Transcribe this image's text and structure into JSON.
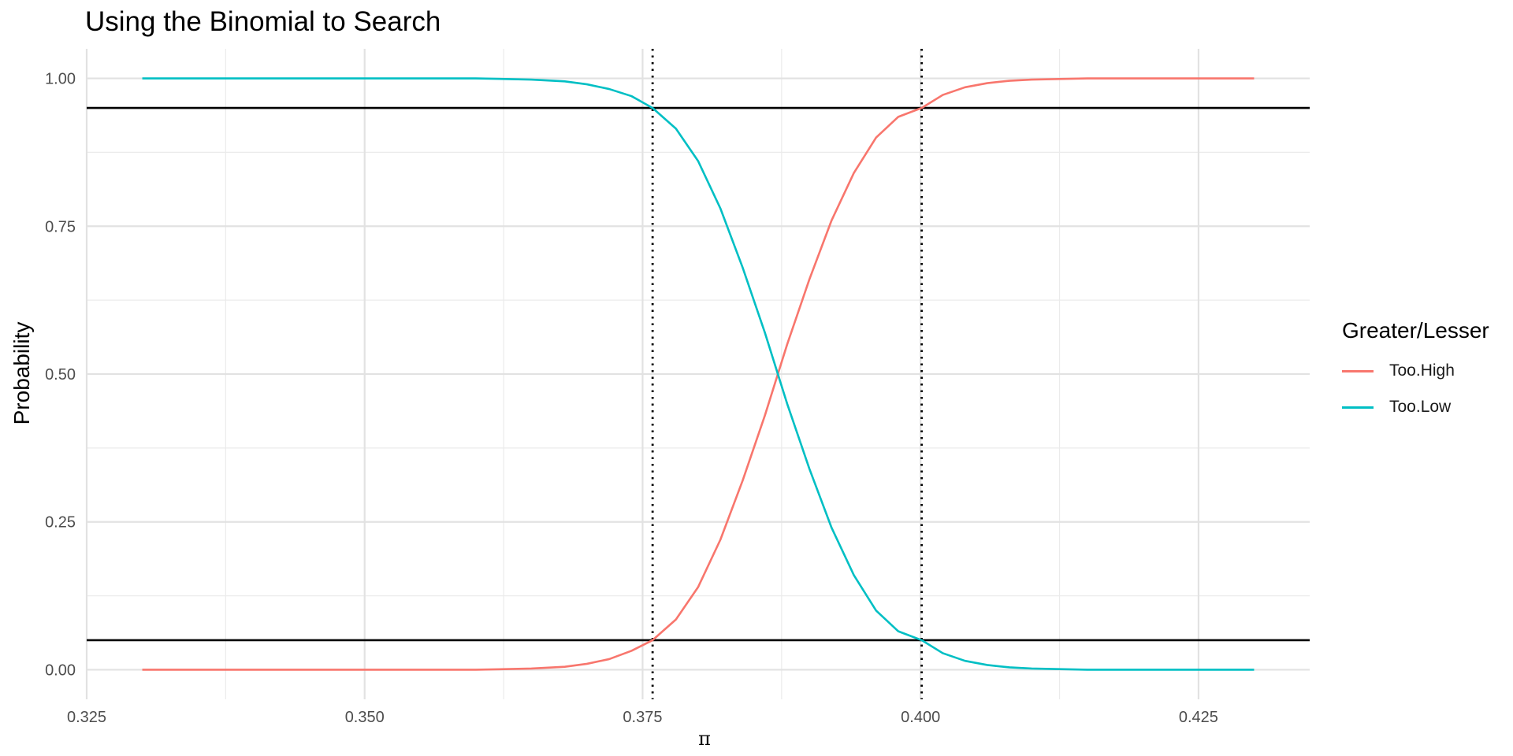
{
  "chart_data": {
    "type": "line",
    "title": "Using the Binomial to Search",
    "xlabel": "π",
    "ylabel": "Probability",
    "xlim": [
      0.325,
      0.435
    ],
    "ylim": [
      -0.05,
      1.05
    ],
    "x_ticks": [
      "0.325",
      "0.350",
      "0.375",
      "0.400",
      "0.425"
    ],
    "x_tick_values": [
      0.325,
      0.35,
      0.375,
      0.4,
      0.425
    ],
    "y_ticks": [
      "0.00",
      "0.25",
      "0.50",
      "0.75",
      "1.00"
    ],
    "y_tick_values": [
      0,
      0.25,
      0.5,
      0.75,
      1.0
    ],
    "grid": true,
    "legend": {
      "title": "Greater/Lesser",
      "position": "right"
    },
    "series": [
      {
        "name": "Too.High",
        "color": "#F8766D",
        "x": [
          0.33,
          0.345,
          0.355,
          0.36,
          0.365,
          0.368,
          0.37,
          0.372,
          0.374,
          0.3759,
          0.378,
          0.38,
          0.382,
          0.384,
          0.386,
          0.388,
          0.39,
          0.392,
          0.394,
          0.396,
          0.398,
          0.4001,
          0.402,
          0.404,
          0.406,
          0.408,
          0.41,
          0.415,
          0.42,
          0.43
        ],
        "y": [
          0.0,
          0.0,
          0.0,
          0.0,
          0.002,
          0.005,
          0.01,
          0.018,
          0.032,
          0.05,
          0.085,
          0.14,
          0.22,
          0.32,
          0.43,
          0.55,
          0.66,
          0.76,
          0.84,
          0.9,
          0.935,
          0.95,
          0.972,
          0.985,
          0.992,
          0.996,
          0.998,
          1.0,
          1.0,
          1.0
        ]
      },
      {
        "name": "Too.Low",
        "color": "#00BFC4",
        "x": [
          0.33,
          0.345,
          0.355,
          0.36,
          0.365,
          0.368,
          0.37,
          0.372,
          0.374,
          0.3759,
          0.378,
          0.38,
          0.382,
          0.384,
          0.386,
          0.388,
          0.39,
          0.392,
          0.394,
          0.396,
          0.398,
          0.4001,
          0.402,
          0.404,
          0.406,
          0.408,
          0.41,
          0.415,
          0.42,
          0.43
        ],
        "y": [
          1.0,
          1.0,
          1.0,
          1.0,
          0.998,
          0.995,
          0.99,
          0.982,
          0.97,
          0.95,
          0.915,
          0.86,
          0.78,
          0.68,
          0.57,
          0.45,
          0.34,
          0.24,
          0.16,
          0.1,
          0.065,
          0.05,
          0.028,
          0.015,
          0.008,
          0.004,
          0.002,
          0.0,
          0.0,
          0.0
        ]
      }
    ],
    "reference_lines": {
      "horizontal": [
        0.05,
        0.95
      ],
      "vertical_dotted": [
        0.3759,
        0.4001
      ]
    }
  }
}
